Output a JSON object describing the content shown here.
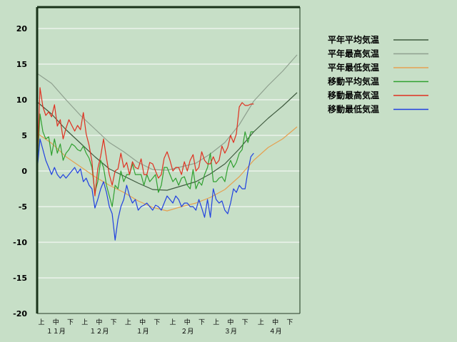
{
  "chart_data": {
    "type": "line",
    "ylim": [
      -20,
      23
    ],
    "yticks": [
      20,
      15,
      10,
      5,
      0,
      -5,
      -10,
      -15,
      -20
    ],
    "xlim": [
      0,
      182
    ],
    "x_period_labels": [
      "上",
      "中",
      "下",
      "上",
      "中",
      "下",
      "上",
      "中",
      "下",
      "上",
      "中",
      "下",
      "上",
      "中",
      "下",
      "上",
      "中",
      "下"
    ],
    "x_period_pos": [
      3,
      13,
      23,
      33,
      43,
      53,
      63,
      73,
      83,
      94,
      104,
      114,
      124,
      134,
      144,
      155,
      165,
      175
    ],
    "x_month_labels": [
      "１１月",
      "１２月",
      "１月",
      "２月",
      "３月",
      "４月"
    ],
    "x_month_pos": [
      13,
      43,
      73,
      104,
      134,
      165
    ],
    "grid": true,
    "legend_position": "right",
    "series": [
      {
        "name": "平年平均気温",
        "color": "#3f5a3f",
        "x": [
          0,
          10,
          20,
          30,
          40,
          50,
          60,
          70,
          80,
          90,
          100,
          110,
          120,
          130,
          140,
          150,
          160,
          170,
          180
        ],
        "y": [
          9.7,
          8.0,
          5.8,
          3.9,
          2.0,
          0.3,
          -0.7,
          -1.7,
          -2.6,
          -2.7,
          -2.1,
          -1.5,
          -0.4,
          1.0,
          3.1,
          5.5,
          7.4,
          9.1,
          11.0
        ]
      },
      {
        "name": "平年最高気温",
        "color": "#8fa08f",
        "x": [
          0,
          10,
          20,
          30,
          40,
          50,
          60,
          70,
          80,
          90,
          100,
          110,
          120,
          130,
          140,
          150,
          160,
          170,
          180
        ],
        "y": [
          13.7,
          12.3,
          10.0,
          7.8,
          5.9,
          4.0,
          2.7,
          1.2,
          0.2,
          0.1,
          0.6,
          1.1,
          2.4,
          4.0,
          6.5,
          9.8,
          12.0,
          14.0,
          16.3
        ]
      },
      {
        "name": "平年最低気温",
        "color": "#e5a050",
        "x": [
          0,
          10,
          20,
          30,
          40,
          50,
          60,
          70,
          80,
          90,
          100,
          110,
          120,
          130,
          140,
          150,
          160,
          170,
          180
        ],
        "y": [
          5.3,
          3.9,
          2.0,
          0.6,
          -0.8,
          -2.0,
          -3.0,
          -4.2,
          -5.1,
          -5.6,
          -5.0,
          -4.5,
          -3.7,
          -2.6,
          -0.8,
          1.5,
          3.3,
          4.5,
          6.2
        ]
      },
      {
        "name": "移動平均気温",
        "color": "#30a030",
        "x": [
          0,
          2,
          4,
          6,
          8,
          10,
          12,
          14,
          16,
          18,
          20,
          22,
          24,
          26,
          28,
          30,
          32,
          34,
          36,
          38,
          40,
          42,
          44,
          46,
          48,
          50,
          52,
          54,
          56,
          58,
          60,
          62,
          64,
          66,
          68,
          70,
          72,
          74,
          76,
          78,
          80,
          82,
          84,
          86,
          88,
          90,
          92,
          94,
          96,
          98,
          100,
          102,
          104,
          106,
          108,
          110,
          112,
          114,
          116,
          118,
          120,
          122,
          124,
          126,
          128,
          130,
          132,
          134,
          136,
          138,
          140,
          142,
          144,
          146,
          148,
          150
        ],
        "y": [
          0,
          8,
          5.5,
          4.5,
          4.8,
          2.2,
          4.5,
          2.5,
          3.8,
          1.5,
          2.5,
          3.0,
          3.8,
          3.5,
          3.0,
          2.8,
          3.5,
          2.5,
          1.8,
          0.5,
          -3.0,
          -1.5,
          1.5,
          0.5,
          -2.0,
          -3.5,
          -5.0,
          -2.0,
          -2.5,
          0.0,
          -1.5,
          -0.5,
          -0.5,
          1.0,
          -0.5,
          -0.5,
          -0.5,
          -2.0,
          -0.5,
          -1.5,
          -1.0,
          -0.5,
          -3.0,
          -2.0,
          0.5,
          0.5,
          -0.5,
          -1.5,
          -1.0,
          -2.0,
          -1.0,
          -0.8,
          -2.0,
          -2.5,
          0.2,
          -2.5,
          -1.5,
          -2.0,
          -0.5,
          0.5,
          2.5,
          -1.5,
          -1.5,
          -1.0,
          -0.8,
          -1.5,
          0.5,
          1.5,
          0.5,
          1.2,
          2.5,
          3.0,
          5.5,
          4.0,
          5.5,
          5.5
        ]
      },
      {
        "name": "移動最高気温",
        "color": "#e03020",
        "x": [
          0,
          2,
          4,
          6,
          8,
          10,
          12,
          14,
          16,
          18,
          20,
          22,
          24,
          26,
          28,
          30,
          32,
          34,
          36,
          38,
          40,
          42,
          44,
          46,
          48,
          50,
          52,
          54,
          56,
          58,
          60,
          62,
          64,
          66,
          68,
          70,
          72,
          74,
          76,
          78,
          80,
          82,
          84,
          86,
          88,
          90,
          92,
          94,
          96,
          98,
          100,
          102,
          104,
          106,
          108,
          110,
          112,
          114,
          116,
          118,
          120,
          122,
          124,
          126,
          128,
          130,
          132,
          134,
          136,
          138,
          140,
          142,
          144,
          146,
          148,
          150
        ],
        "y": [
          0,
          11.7,
          9.0,
          7.8,
          8.3,
          7.6,
          9.3,
          6.3,
          7.2,
          4.5,
          6.0,
          7.2,
          6.4,
          5.6,
          6.4,
          5.8,
          8.2,
          5.2,
          3.6,
          1.3,
          -3.5,
          0.3,
          2.1,
          4.5,
          1.8,
          -0.5,
          -2.0,
          0.0,
          0.3,
          2.5,
          0.5,
          1.2,
          -0.5,
          1.3,
          0.5,
          0.3,
          1.7,
          -0.5,
          -0.5,
          1.2,
          1.0,
          0.0,
          -1.0,
          -0.5,
          1.8,
          2.7,
          1.5,
          0.0,
          0.5,
          0.5,
          -0.5,
          1.3,
          0.0,
          1.5,
          2.3,
          0.0,
          0.5,
          2.7,
          1.5,
          1.0,
          1.0,
          2.0,
          1.0,
          1.5,
          3.5,
          2.5,
          3.3,
          5.0,
          4.0,
          5.2,
          9.0,
          9.6,
          9.2,
          9.2,
          9.4,
          9.4
        ]
      },
      {
        "name": "移動最低気温",
        "color": "#2040e0",
        "x": [
          0,
          2,
          4,
          6,
          8,
          10,
          12,
          14,
          16,
          18,
          20,
          22,
          24,
          26,
          28,
          30,
          32,
          34,
          36,
          38,
          40,
          42,
          44,
          46,
          48,
          50,
          52,
          54,
          56,
          58,
          60,
          62,
          64,
          66,
          68,
          70,
          72,
          74,
          76,
          78,
          80,
          82,
          84,
          86,
          88,
          90,
          92,
          94,
          96,
          98,
          100,
          102,
          104,
          106,
          108,
          110,
          112,
          114,
          116,
          118,
          120,
          122,
          124,
          126,
          128,
          130,
          132,
          134,
          136,
          138,
          140,
          142,
          144,
          146,
          148,
          150
        ],
        "y": [
          0,
          4.5,
          3.0,
          1.5,
          0.5,
          -0.5,
          0.5,
          -0.5,
          -1.0,
          -0.5,
          -1.0,
          -0.5,
          0.0,
          0.5,
          -0.3,
          0.3,
          -1.5,
          -1.0,
          -2.0,
          -2.5,
          -5.2,
          -4.0,
          -2.5,
          -1.5,
          -3.0,
          -5.0,
          -6.0,
          -9.7,
          -6.8,
          -5.0,
          -4.0,
          -2.0,
          -3.5,
          -4.5,
          -4.0,
          -5.5,
          -5.0,
          -4.8,
          -4.5,
          -5.0,
          -5.5,
          -4.8,
          -5.0,
          -5.5,
          -4.5,
          -3.5,
          -4.0,
          -4.5,
          -3.5,
          -4.0,
          -5.0,
          -4.5,
          -4.5,
          -5.0,
          -5.0,
          -5.5,
          -4.0,
          -5.2,
          -6.5,
          -4.0,
          -6.5,
          -2.5,
          -4.0,
          -4.5,
          -4.2,
          -5.5,
          -6.0,
          -4.5,
          -2.5,
          -3.0,
          -2.0,
          -2.5,
          -2.5,
          0.0,
          2.0,
          2.5
        ]
      }
    ]
  }
}
